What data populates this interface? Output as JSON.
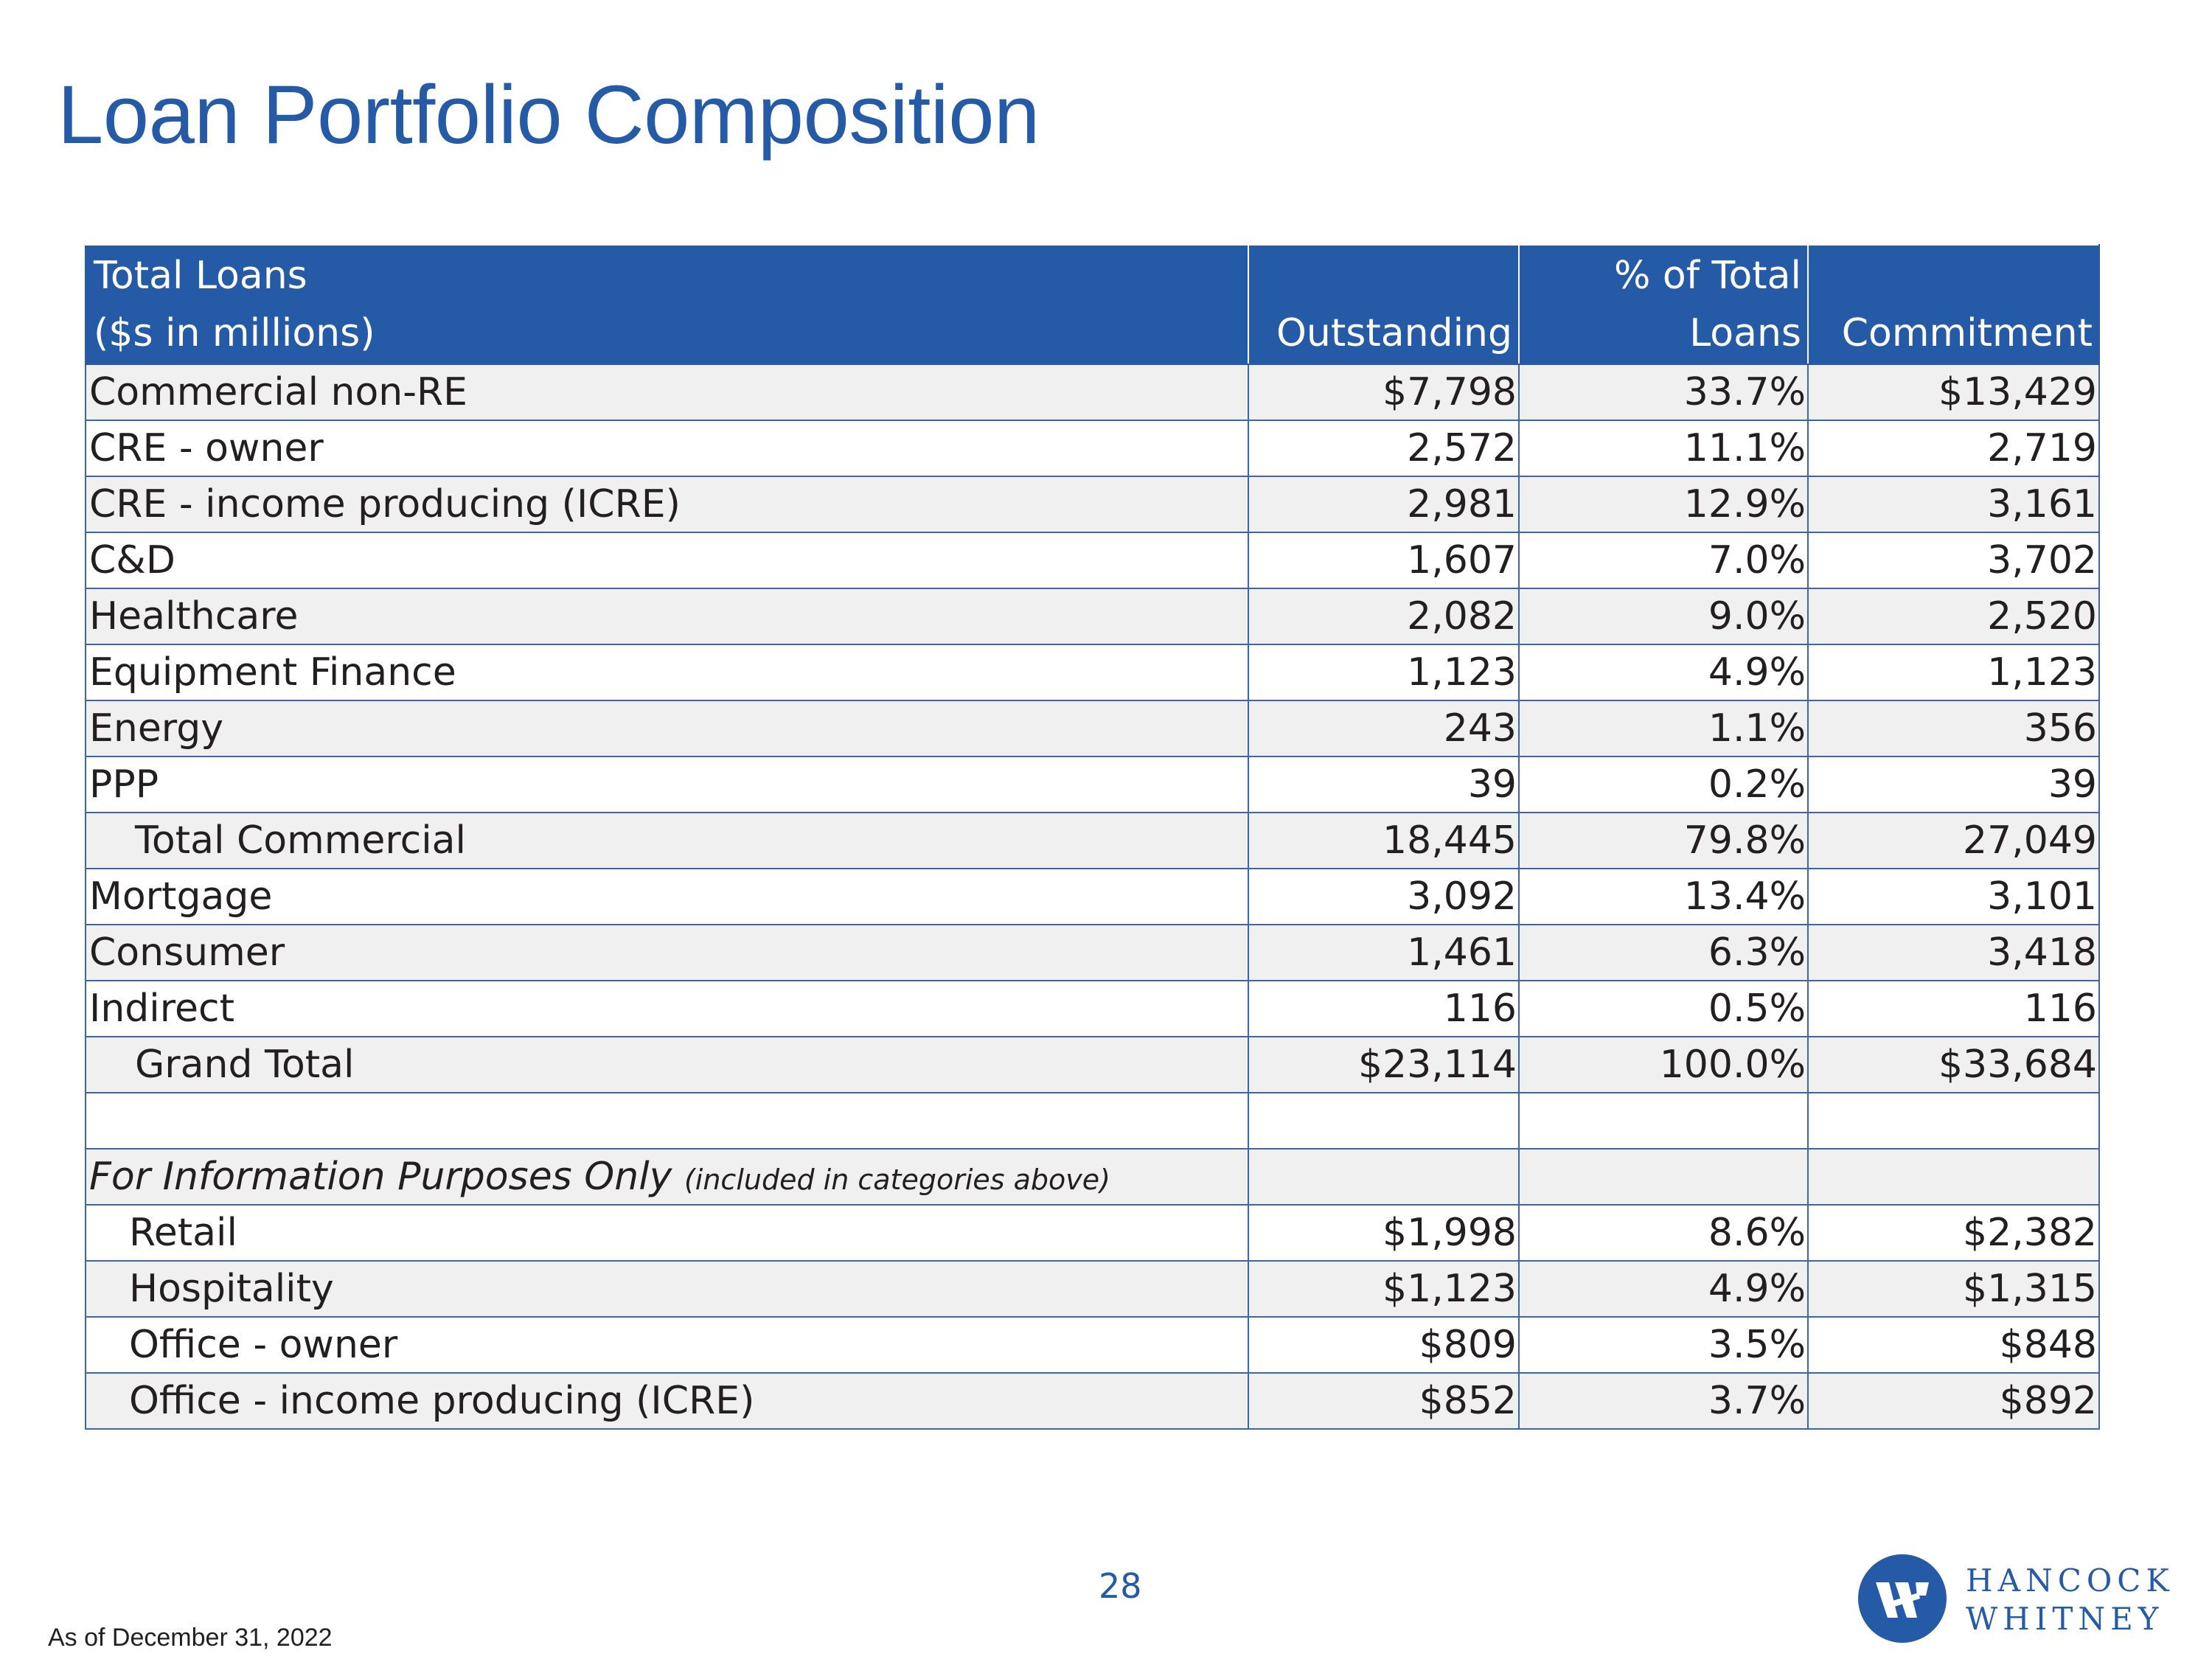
{
  "title": "Loan Portfolio Composition",
  "table": {
    "header": {
      "label_line1": "Total Loans",
      "label_line2": "($s in millions)",
      "outstanding": "Outstanding",
      "pct_line1": "% of Total",
      "pct_line2": "Loans",
      "commitment": "Commitment"
    },
    "rows": [
      {
        "label": "Commercial non-RE",
        "outstanding": "$7,798",
        "pct": "33.7%",
        "commitment": "$13,429"
      },
      {
        "label": "CRE - owner",
        "outstanding": "2,572",
        "pct": "11.1%",
        "commitment": "2,719"
      },
      {
        "label": "CRE - income producing (ICRE)",
        "outstanding": "2,981",
        "pct": "12.9%",
        "commitment": "3,161"
      },
      {
        "label": "C&D",
        "outstanding": "1,607",
        "pct": "7.0%",
        "commitment": "3,702"
      },
      {
        "label": "Healthcare",
        "outstanding": "2,082",
        "pct": "9.0%",
        "commitment": "2,520"
      },
      {
        "label": "Equipment Finance",
        "outstanding": "1,123",
        "pct": "4.9%",
        "commitment": "1,123"
      },
      {
        "label": "Energy",
        "outstanding": "243",
        "pct": "1.1%",
        "commitment": "356"
      },
      {
        "label": "PPP",
        "outstanding": "39",
        "pct": "0.2%",
        "commitment": "39"
      },
      {
        "label": "Total Commercial",
        "outstanding": "18,445",
        "pct": "79.8%",
        "commitment": "27,049"
      },
      {
        "label": "Mortgage",
        "outstanding": "3,092",
        "pct": "13.4%",
        "commitment": "3,101"
      },
      {
        "label": "Consumer",
        "outstanding": "1,461",
        "pct": "6.3%",
        "commitment": "3,418"
      },
      {
        "label": "Indirect",
        "outstanding": "116",
        "pct": "0.5%",
        "commitment": "116"
      },
      {
        "label": "Grand Total",
        "outstanding": "$23,114",
        "pct": "100.0%",
        "commitment": "$33,684"
      }
    ],
    "info_section": {
      "title": "For Information Purposes Only",
      "subtitle": "(included in categories above)",
      "rows": [
        {
          "label": "Retail",
          "outstanding": "$1,998",
          "pct": "8.6%",
          "commitment": "$2,382"
        },
        {
          "label": "Hospitality",
          "outstanding": "$1,123",
          "pct": "4.9%",
          "commitment": "$1,315"
        },
        {
          "label": "Office - owner",
          "outstanding": "$809",
          "pct": "3.5%",
          "commitment": "$848"
        },
        {
          "label": "Office - income producing (ICRE)",
          "outstanding": "$852",
          "pct": "3.7%",
          "commitment": "$892"
        }
      ]
    }
  },
  "page_number": "28",
  "footnote": "As of December 31, 2022",
  "logo": {
    "line1": "HANCOCK",
    "line2": "WHITNEY",
    "mark_color": "#245aa6"
  },
  "colors": {
    "accent": "#245aa6",
    "row_shade": "#f0f0f0"
  }
}
